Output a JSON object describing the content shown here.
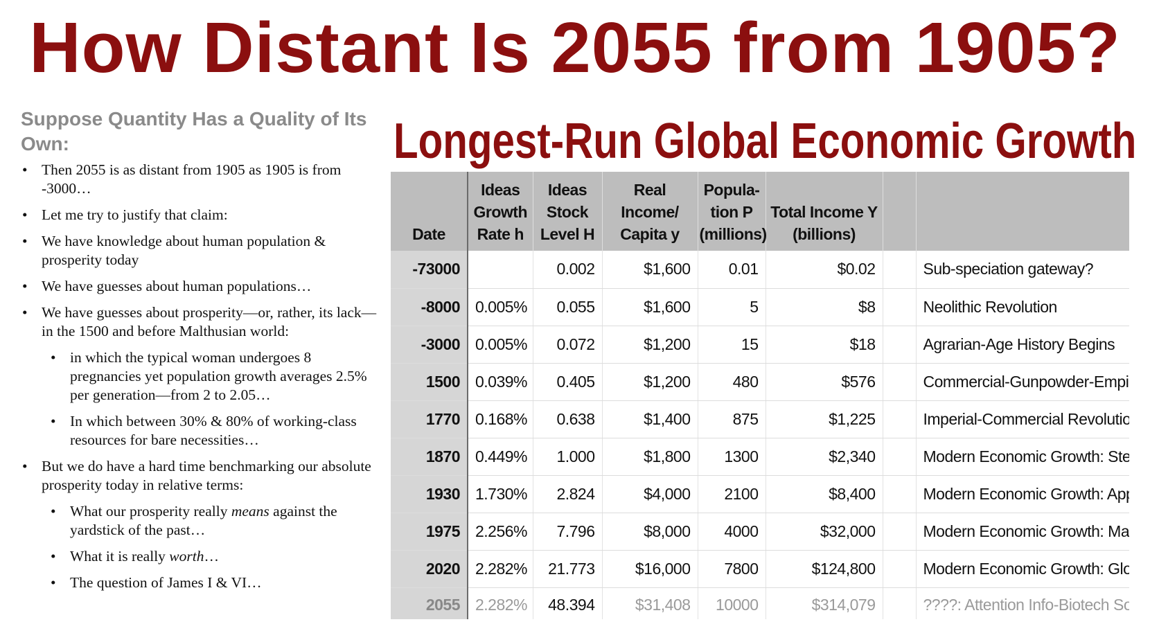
{
  "title": "How Distant Is 2055 from 1905?",
  "left": {
    "heading": "Suppose Quantity Has a Quality of Its Own:",
    "bullets": [
      {
        "text": "Then 2055 is as distant from 1905 as 1905 is from -3000…"
      },
      {
        "text": "Let me try to justify that claim:"
      },
      {
        "text": "We have knowledge about human population & prosperity today"
      },
      {
        "text": "We have guesses about human populations…"
      },
      {
        "text": "We have guesses about prosperity—or, rather, its lack—in the 1500 and before Malthusian world:"
      },
      {
        "text": "in which the typical woman undergoes 8 pregnancies yet population growth averages 2.5% per generation—from 2 to 2.05…",
        "level": 2
      },
      {
        "text": "In which between 30% & 80% of working-class resources for bare necessities…",
        "level": 2
      },
      {
        "text": "But we do have a hard time benchmarking our absolute prosperity today in relative terms:"
      },
      {
        "before": "What our prosperity really ",
        "em": "means",
        "after": " against the yardstick of the past…",
        "level": 2
      },
      {
        "before": "What it is really ",
        "em": "worth",
        "after": "…",
        "level": 2
      },
      {
        "text": "The question of James I & VI…",
        "level": 2
      }
    ]
  },
  "table": {
    "title": "Longest-Run Global Economic Growth",
    "headers": [
      [
        "Date"
      ],
      [
        "Ideas",
        "Growth",
        "Rate h"
      ],
      [
        "Ideas",
        "Stock",
        "Level H"
      ],
      [
        "Real",
        "Income/",
        "Capita y"
      ],
      [
        "Popula-",
        "tion P",
        "(millions)"
      ],
      [
        "Total Income Y",
        "(billions)"
      ],
      [
        ""
      ],
      [
        ""
      ]
    ],
    "rows": [
      {
        "date": "-73000",
        "rate": "",
        "stock": "0.002",
        "income": "$1,600",
        "pop": "0.01",
        "total": "$0.02",
        "note": "Sub-speciation gateway?"
      },
      {
        "date": "-8000",
        "rate": "0.005%",
        "stock": "0.055",
        "income": "$1,600",
        "pop": "5",
        "total": "$8",
        "note": "Neolithic Revolution"
      },
      {
        "date": "-3000",
        "rate": "0.005%",
        "stock": "0.072",
        "income": "$1,200",
        "pop": "15",
        "total": "$18",
        "note": "Agrarian-Age History Begins"
      },
      {
        "date": "1500",
        "rate": "0.039%",
        "stock": "0.405",
        "income": "$1,200",
        "pop": "480",
        "total": "$576",
        "note": "Commercial-Gunpowder-Empire m"
      },
      {
        "date": "1770",
        "rate": "0.168%",
        "stock": "0.638",
        "income": "$1,400",
        "pop": "875",
        "total": "$1,225",
        "note": "Imperial-Commercial Revolution"
      },
      {
        "date": "1870",
        "rate": "0.449%",
        "stock": "1.000",
        "income": "$1,800",
        "pop": "1300",
        "total": "$2,340",
        "note": "Modern Economic Growth: Steam"
      },
      {
        "date": "1930",
        "rate": "1.730%",
        "stock": "2.824",
        "income": "$4,000",
        "pop": "2100",
        "total": "$8,400",
        "note": "Modern Economic Growth: Applie"
      },
      {
        "date": "1975",
        "rate": "2.256%",
        "stock": "7.796",
        "income": "$8,000",
        "pop": "4000",
        "total": "$32,000",
        "note": "Modern Economic Growth: Mass-F"
      },
      {
        "date": "2020",
        "rate": "2.282%",
        "stock": "21.773",
        "income": "$16,000",
        "pop": "7800",
        "total": "$124,800",
        "note": "Modern Economic Growth: Globali"
      },
      {
        "date": "2055",
        "rate": "2.282%",
        "stock": "48.394",
        "income": "$31,408",
        "pop": "10000",
        "total": "$314,079",
        "note": "????: Attention Info-Biotech Socie",
        "faded": true
      }
    ]
  }
}
